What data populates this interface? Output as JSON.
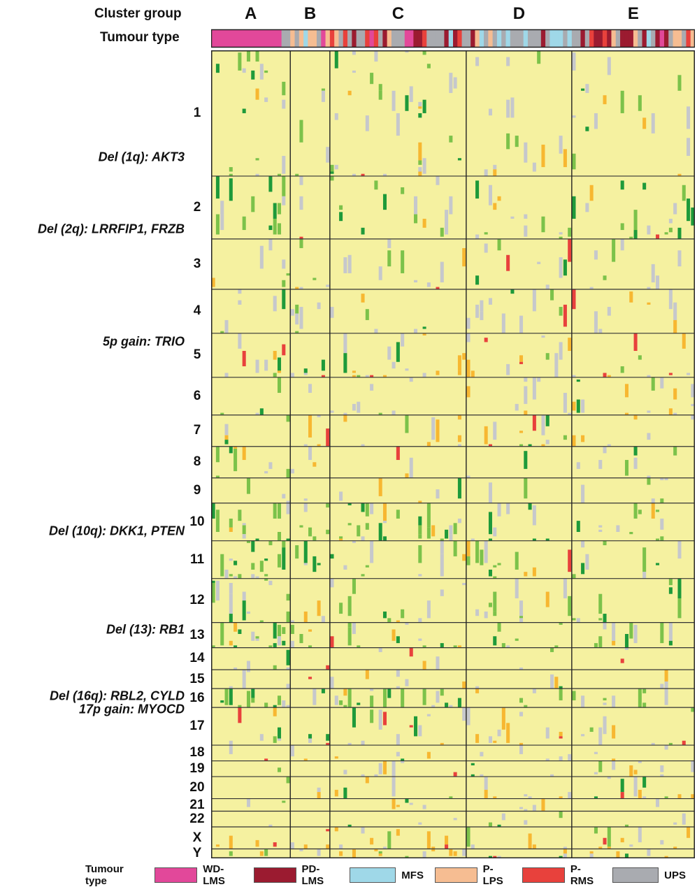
{
  "labels": {
    "cluster_group": "Cluster group",
    "tumour_type": "Tumour type",
    "legend_title": "Tumour type"
  },
  "chart_data": {
    "type": "heatmap",
    "title": "",
    "cluster_groups": [
      {
        "label": "A",
        "samples": 18
      },
      {
        "label": "B",
        "samples": 9
      },
      {
        "label": "C",
        "samples": 31
      },
      {
        "label": "D",
        "samples": 24
      },
      {
        "label": "E",
        "samples": 28
      }
    ],
    "tumour_types": [
      {
        "code": "WD-LMS",
        "color": "#e2489a"
      },
      {
        "code": "PD-LMS",
        "color": "#9b1b30"
      },
      {
        "code": "MFS",
        "color": "#9fd8e8"
      },
      {
        "code": "P-LPS",
        "color": "#f6bd92"
      },
      {
        "code": "P-RMS",
        "color": "#e8413c"
      },
      {
        "code": "UPS",
        "color": "#a9abb0"
      }
    ],
    "state_colors": {
      "neutral": "#f5f1a0",
      "loss": "#7cc24a",
      "deep_loss": "#1e9a3a",
      "gain": "#f7b731",
      "high_gain": "#e8413c",
      "no_data": "#c6c8cc"
    },
    "chromosomes": [
      {
        "label": "1",
        "size": 20
      },
      {
        "label": "2",
        "size": 10
      },
      {
        "label": "3",
        "size": 8
      },
      {
        "label": "4",
        "size": 7
      },
      {
        "label": "5",
        "size": 7
      },
      {
        "label": "6",
        "size": 6
      },
      {
        "label": "7",
        "size": 5
      },
      {
        "label": "8",
        "size": 5
      },
      {
        "label": "9",
        "size": 4
      },
      {
        "label": "10",
        "size": 6
      },
      {
        "label": "11",
        "size": 6
      },
      {
        "label": "12",
        "size": 7
      },
      {
        "label": "13",
        "size": 4
      },
      {
        "label": "14",
        "size": 3.5
      },
      {
        "label": "15",
        "size": 3
      },
      {
        "label": "16",
        "size": 3
      },
      {
        "label": "17",
        "size": 6
      },
      {
        "label": "18",
        "size": 2.5
      },
      {
        "label": "19",
        "size": 2.5
      },
      {
        "label": "20",
        "size": 3.5
      },
      {
        "label": "21",
        "size": 2
      },
      {
        "label": "22",
        "size": 2.5
      },
      {
        "label": "X",
        "size": 3.5
      },
      {
        "label": "Y",
        "size": 1.5
      }
    ],
    "annotations": [
      {
        "text": "Del (1q): AKT3",
        "chromosome": "1",
        "offset": 0.85,
        "style": "italic"
      },
      {
        "text": "Del (2q): LRRFIP1, FRZB",
        "chromosome": "2",
        "offset": 0.85,
        "style": "italic"
      },
      {
        "text": "5p gain: TRIO",
        "chromosome": "5",
        "offset": 0.2,
        "style": "italic"
      },
      {
        "text": "Del (10q): DKK1, PTEN",
        "chromosome": "10",
        "offset": 0.75,
        "style": "italic"
      },
      {
        "text": "Del (13): RB1",
        "chromosome": "13",
        "offset": 0.3,
        "style": "italic"
      },
      {
        "text": "Del (16q): RBL2, CYLD",
        "chromosome": "16",
        "offset": 0.4,
        "style": "italic"
      },
      {
        "text": "17p gain: MYOCD",
        "chromosome": "17",
        "offset": 0.05,
        "style": "italic"
      }
    ]
  }
}
